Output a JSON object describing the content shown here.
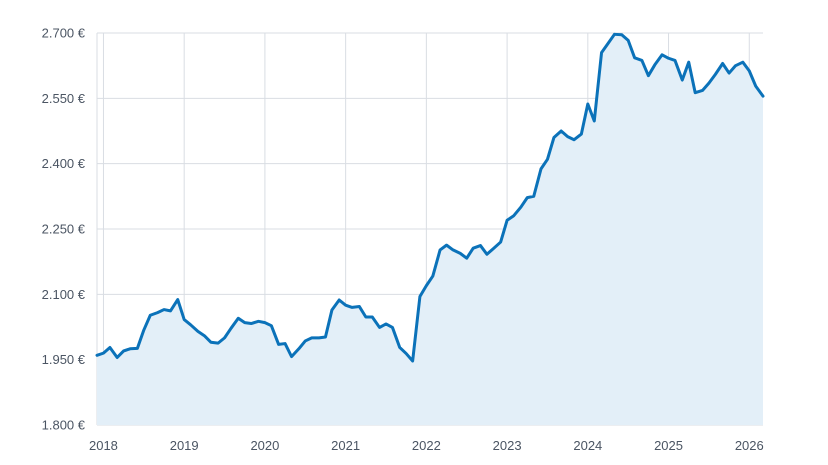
{
  "chart_data": {
    "type": "area",
    "title": "",
    "xlabel": "",
    "ylabel": "",
    "ylim": [
      1800,
      2700
    ],
    "yticks": [
      1800,
      1950,
      2100,
      2250,
      2400,
      2550,
      2700
    ],
    "ytick_labels": [
      "1.800 €",
      "1.950 €",
      "2.100 €",
      "2.250 €",
      "2.400 €",
      "2.550 €",
      "2.700 €"
    ],
    "xlim": [
      2017.92,
      2026.17
    ],
    "xticks": [
      2018,
      2019,
      2020,
      2021,
      2022,
      2023,
      2024,
      2025,
      2026
    ],
    "xtick_labels": [
      "2018",
      "2019",
      "2020",
      "2021",
      "2022",
      "2023",
      "2024",
      "2025",
      "2026"
    ],
    "grid": true,
    "colors": {
      "line": "#0b72b9",
      "fill": "#e3eff8",
      "grid": "#d9dde3",
      "tick_text": "#4b5563"
    },
    "series": [
      {
        "x": [
          2017.92,
          2018.0,
          2018.08,
          2018.17,
          2018.25,
          2018.33,
          2018.42,
          2018.5,
          2018.58,
          2018.67,
          2018.75,
          2018.83,
          2018.92,
          2019.0,
          2019.08,
          2019.17,
          2019.25,
          2019.33,
          2019.42,
          2019.5,
          2019.58,
          2019.67,
          2019.75,
          2019.83,
          2019.92,
          2020.0,
          2020.08,
          2020.17,
          2020.25,
          2020.33,
          2020.42,
          2020.5,
          2020.58,
          2020.67,
          2020.75,
          2020.83,
          2020.92,
          2021.0,
          2021.08,
          2021.17,
          2021.25,
          2021.33,
          2021.42,
          2021.5,
          2021.58,
          2021.67,
          2021.75,
          2021.83,
          2021.92,
          2022.0,
          2022.08,
          2022.17,
          2022.25,
          2022.33,
          2022.42,
          2022.5,
          2022.58,
          2022.67,
          2022.75,
          2022.83,
          2022.92,
          2023.0,
          2023.08,
          2023.17,
          2023.25,
          2023.33,
          2023.42,
          2023.5,
          2023.58,
          2023.67,
          2023.75,
          2023.83,
          2023.92,
          2024.0,
          2024.08,
          2024.17,
          2024.25,
          2024.33,
          2024.42,
          2024.5,
          2024.58,
          2024.67,
          2024.75,
          2024.83,
          2024.92,
          2025.0,
          2025.08,
          2025.17,
          2025.25,
          2025.33,
          2025.42,
          2025.5,
          2025.58,
          2025.67,
          2025.75,
          2025.83,
          2025.92,
          2026.0,
          2026.08,
          2026.17
        ],
        "y": [
          1960,
          1965,
          1978,
          1955,
          1970,
          1975,
          1976,
          2018,
          2052,
          2058,
          2065,
          2062,
          2088,
          2042,
          2030,
          2015,
          2005,
          1990,
          1988,
          2000,
          2022,
          2045,
          2035,
          2033,
          2038,
          2035,
          2028,
          1985,
          1987,
          1957,
          1975,
          1993,
          2000,
          2000,
          2002,
          2064,
          2087,
          2075,
          2070,
          2072,
          2048,
          2048,
          2024,
          2032,
          2024,
          1978,
          1964,
          1947,
          2095,
          2120,
          2142,
          2202,
          2213,
          2202,
          2194,
          2183,
          2206,
          2212,
          2192,
          2205,
          2220,
          2270,
          2280,
          2300,
          2322,
          2325,
          2388,
          2410,
          2460,
          2475,
          2462,
          2455,
          2468,
          2537,
          2498,
          2655,
          2676,
          2697,
          2696,
          2683,
          2643,
          2637,
          2602,
          2627,
          2650,
          2642,
          2637,
          2592,
          2633,
          2563,
          2568,
          2585,
          2605,
          2630,
          2608,
          2625,
          2633,
          2613,
          2578,
          2555
        ]
      }
    ]
  }
}
